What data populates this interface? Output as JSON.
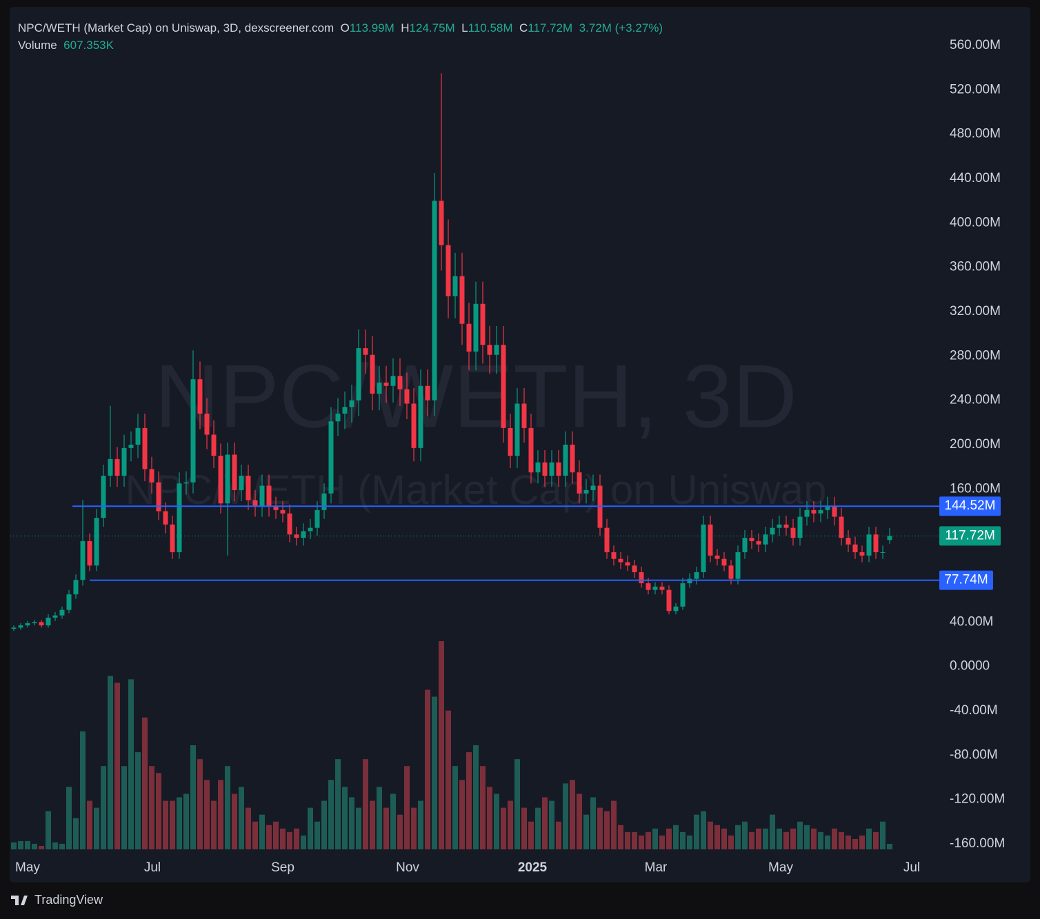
{
  "header": {
    "title": "NPC/WETH (Market Cap) on Uniswap, 3D, dexscreener.com",
    "o_label": "O",
    "o": "113.99M",
    "h_label": "H",
    "h": "124.75M",
    "l_label": "L",
    "l": "110.58M",
    "c_label": "C",
    "c": "117.72M",
    "change": "3.72M (+3.27%)",
    "volume_label": "Volume",
    "volume": "607.353K"
  },
  "watermark": {
    "symbol": "NPC/WETH, 3D",
    "name": "NPC/WETH (Market Cap) on Uniswap"
  },
  "footer": {
    "brand": "TradingView"
  },
  "chart_data": {
    "type": "candlestick",
    "up_color": "#089981",
    "down_color": "#f23645",
    "volume_up_color": "#1d5d56",
    "volume_down_color": "#7b2f3a",
    "open": [
      34,
      35,
      37,
      39,
      40,
      37,
      44,
      46,
      51,
      65,
      78,
      113,
      91,
      134,
      172,
      187,
      172,
      197,
      200,
      215,
      178,
      166,
      140,
      128,
      103,
      165,
      166,
      259,
      228,
      209,
      190,
      147,
      191,
      159,
      172,
      150,
      144,
      163,
      144,
      141,
      138,
      119,
      116,
      122,
      125,
      141,
      156,
      221,
      228,
      234,
      240,
      287,
      281,
      246,
      256,
      253,
      262,
      250,
      237,
      197,
      253,
      240,
      420,
      380,
      334,
      352,
      309,
      284,
      327,
      290,
      281,
      290,
      215,
      190,
      237,
      215,
      175,
      184,
      172,
      184,
      172,
      200,
      175,
      156,
      159,
      163,
      125,
      103,
      97,
      94,
      91,
      85,
      75,
      69,
      72,
      69,
      50,
      54,
      75,
      79,
      85,
      128,
      100,
      97,
      91,
      79,
      103,
      116,
      113,
      110,
      119,
      125,
      128,
      125,
      116,
      135,
      141,
      138,
      141,
      144,
      135,
      116,
      110,
      103,
      100,
      119,
      103,
      113.99
    ],
    "high": [
      37,
      39,
      41,
      42,
      42,
      47,
      49,
      54,
      69,
      83,
      150,
      120,
      142,
      182,
      235,
      198,
      209,
      212,
      228,
      228,
      189,
      176,
      148,
      136,
      175,
      176,
      285,
      275,
      242,
      222,
      201,
      202,
      202,
      182,
      182,
      159,
      173,
      173,
      153,
      149,
      146,
      126,
      129,
      133,
      149,
      165,
      234,
      242,
      248,
      254,
      304,
      304,
      298,
      271,
      271,
      278,
      278,
      265,
      251,
      268,
      268,
      445,
      535,
      403,
      373,
      373,
      328,
      347,
      347,
      307,
      307,
      307,
      228,
      251,
      251,
      228,
      195,
      195,
      195,
      195,
      212,
      212,
      186,
      169,
      173,
      173,
      133,
      109,
      103,
      100,
      96,
      90,
      80,
      76,
      76,
      73,
      57,
      80,
      84,
      90,
      136,
      136,
      106,
      103,
      96,
      109,
      123,
      123,
      120,
      126,
      133,
      136,
      136,
      133,
      143,
      149,
      149,
      149,
      153,
      153,
      143,
      123,
      117,
      109,
      126,
      126,
      109,
      124.75
    ],
    "low": [
      32,
      33,
      35,
      37,
      35,
      35,
      41,
      43,
      48,
      61,
      73,
      86,
      86,
      126,
      162,
      162,
      162,
      185,
      188,
      167,
      156,
      132,
      120,
      97,
      97,
      155,
      156,
      214,
      196,
      179,
      138,
      100,
      149,
      149,
      141,
      135,
      135,
      135,
      133,
      130,
      112,
      109,
      109,
      115,
      118,
      133,
      147,
      208,
      214,
      220,
      226,
      264,
      231,
      231,
      238,
      238,
      235,
      223,
      185,
      185,
      226,
      226,
      357,
      314,
      314,
      290,
      267,
      267,
      273,
      264,
      264,
      202,
      179,
      179,
      202,
      165,
      165,
      162,
      162,
      162,
      162,
      165,
      147,
      147,
      149,
      118,
      97,
      91,
      88,
      86,
      80,
      71,
      65,
      65,
      65,
      47,
      47,
      51,
      71,
      74,
      80,
      94,
      91,
      86,
      74,
      74,
      97,
      106,
      103,
      103,
      112,
      118,
      118,
      109,
      109,
      127,
      130,
      130,
      133,
      127,
      109,
      103,
      97,
      94,
      94,
      97,
      97,
      110.58
    ],
    "close": [
      35,
      37,
      39,
      40,
      37,
      44,
      46,
      51,
      65,
      78,
      113,
      91,
      134,
      172,
      187,
      172,
      197,
      200,
      215,
      178,
      166,
      140,
      128,
      103,
      165,
      166,
      259,
      228,
      209,
      190,
      147,
      191,
      159,
      172,
      150,
      144,
      163,
      144,
      141,
      138,
      119,
      116,
      122,
      125,
      141,
      156,
      221,
      228,
      234,
      240,
      287,
      281,
      246,
      256,
      253,
      262,
      250,
      237,
      197,
      253,
      240,
      420,
      380,
      334,
      352,
      309,
      284,
      327,
      290,
      281,
      290,
      215,
      190,
      237,
      215,
      175,
      184,
      172,
      184,
      172,
      200,
      175,
      156,
      159,
      163,
      125,
      103,
      97,
      94,
      91,
      85,
      75,
      69,
      72,
      69,
      50,
      54,
      75,
      79,
      85,
      128,
      100,
      97,
      91,
      79,
      103,
      116,
      113,
      110,
      119,
      125,
      128,
      125,
      116,
      135,
      141,
      138,
      141,
      144,
      135,
      116,
      110,
      103,
      100,
      119,
      103,
      103,
      117.72
    ],
    "volume": [
      760,
      912,
      912,
      608,
      380,
      4180,
      760,
      608,
      6840,
      3420,
      12920,
      5320,
      4560,
      9120,
      19000,
      18240,
      9120,
      18620,
      10640,
      14440,
      9120,
      8360,
      5320,
      5320,
      5700,
      6080,
      11400,
      9880,
      7600,
      5320,
      7600,
      9120,
      6080,
      6840,
      4560,
      3040,
      3800,
      2660,
      3040,
      2280,
      1900,
      2280,
      1520,
      4560,
      3040,
      5320,
      7600,
      9880,
      6840,
      5700,
      4560,
      9880,
      5320,
      6840,
      4560,
      6080,
      3800,
      9120,
      4560,
      5320,
      17480,
      16720,
      22800,
      15200,
      9120,
      7600,
      10640,
      11400,
      9120,
      6840,
      6080,
      4560,
      5320,
      9880,
      4560,
      3040,
      4560,
      5700,
      5320,
      3040,
      7220,
      7600,
      6080,
      3800,
      5700,
      4560,
      4180,
      5320,
      2660,
      1900,
      1900,
      1520,
      1900,
      2280,
      1520,
      2280,
      2660,
      1900,
      1520,
      3800,
      4180,
      3040,
      2660,
      2280,
      1520,
      2660,
      3040,
      1900,
      2280,
      2280,
      3800,
      2280,
      1900,
      2280,
      3040,
      2660,
      2280,
      1900,
      1520,
      2280,
      1900,
      1520,
      1140,
      1520,
      2280,
      1900,
      3040,
      607.353
    ],
    "ylim": [
      -160,
      560
    ],
    "yticks": [
      {
        "value": 560,
        "label": "560.00M"
      },
      {
        "value": 520,
        "label": "520.00M"
      },
      {
        "value": 480,
        "label": "480.00M"
      },
      {
        "value": 440,
        "label": "440.00M"
      },
      {
        "value": 400,
        "label": "400.00M"
      },
      {
        "value": 360,
        "label": "360.00M"
      },
      {
        "value": 320,
        "label": "320.00M"
      },
      {
        "value": 280,
        "label": "280.00M"
      },
      {
        "value": 240,
        "label": "240.00M"
      },
      {
        "value": 200,
        "label": "200.00M"
      },
      {
        "value": 160,
        "label": "160.00M"
      },
      {
        "value": 40,
        "label": "40.00M"
      },
      {
        "value": 0,
        "label": "0.0000"
      },
      {
        "value": -40,
        "label": "-40.00M"
      },
      {
        "value": -80,
        "label": "-80.00M"
      },
      {
        "value": -120,
        "label": "-120.00M"
      },
      {
        "value": -160,
        "label": "-160.00M"
      }
    ],
    "xticks": [
      {
        "value": 2,
        "label": "May"
      },
      {
        "value": 20.1,
        "label": "Jul"
      },
      {
        "value": 39,
        "label": "Sep"
      },
      {
        "value": 57.1,
        "label": "Nov"
      },
      {
        "value": 75.2,
        "label": "2025"
      },
      {
        "value": 93.1,
        "label": "Mar"
      },
      {
        "value": 111.2,
        "label": "May"
      },
      {
        "value": 130.2,
        "label": "Jul"
      }
    ],
    "price_lines": [
      {
        "value": 144.52,
        "label": "144.52M",
        "color": "#2962ff"
      },
      {
        "value": 117.72,
        "label": "117.72M",
        "color": "#089981"
      },
      {
        "value": 77.74,
        "label": "77.74M",
        "color": "#2962ff"
      }
    ]
  }
}
